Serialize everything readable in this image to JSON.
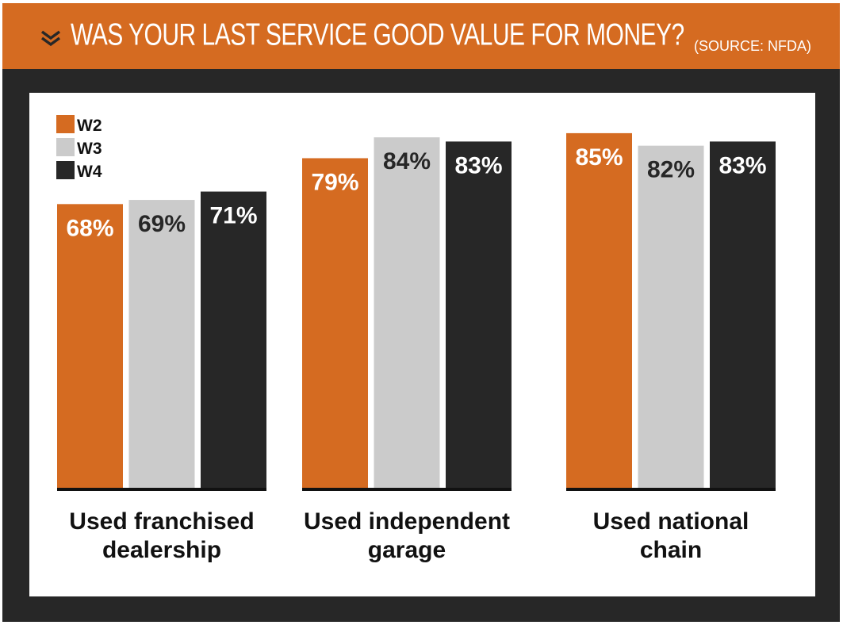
{
  "chart_data": {
    "type": "bar",
    "title": "WAS YOUR LAST SERVICE GOOD VALUE FOR MONEY?",
    "subtitle": "(SOURCE: NFDA)",
    "categories": [
      [
        "Used franchised",
        "dealership"
      ],
      [
        "Used independent",
        "garage"
      ],
      [
        "Used national",
        "chain"
      ]
    ],
    "series": [
      {
        "name": "W2",
        "color": "#d56b21",
        "values": [
          68,
          79,
          85
        ]
      },
      {
        "name": "W3",
        "color": "#cbcbcb",
        "values": [
          69,
          84,
          82
        ]
      },
      {
        "name": "W4",
        "color": "#272727",
        "values": [
          71,
          83,
          83
        ]
      }
    ],
    "value_suffix": "%",
    "ylim": [
      0,
      100
    ],
    "legend_position": "top-left",
    "grid": false,
    "xlabel": "",
    "ylabel": ""
  }
}
